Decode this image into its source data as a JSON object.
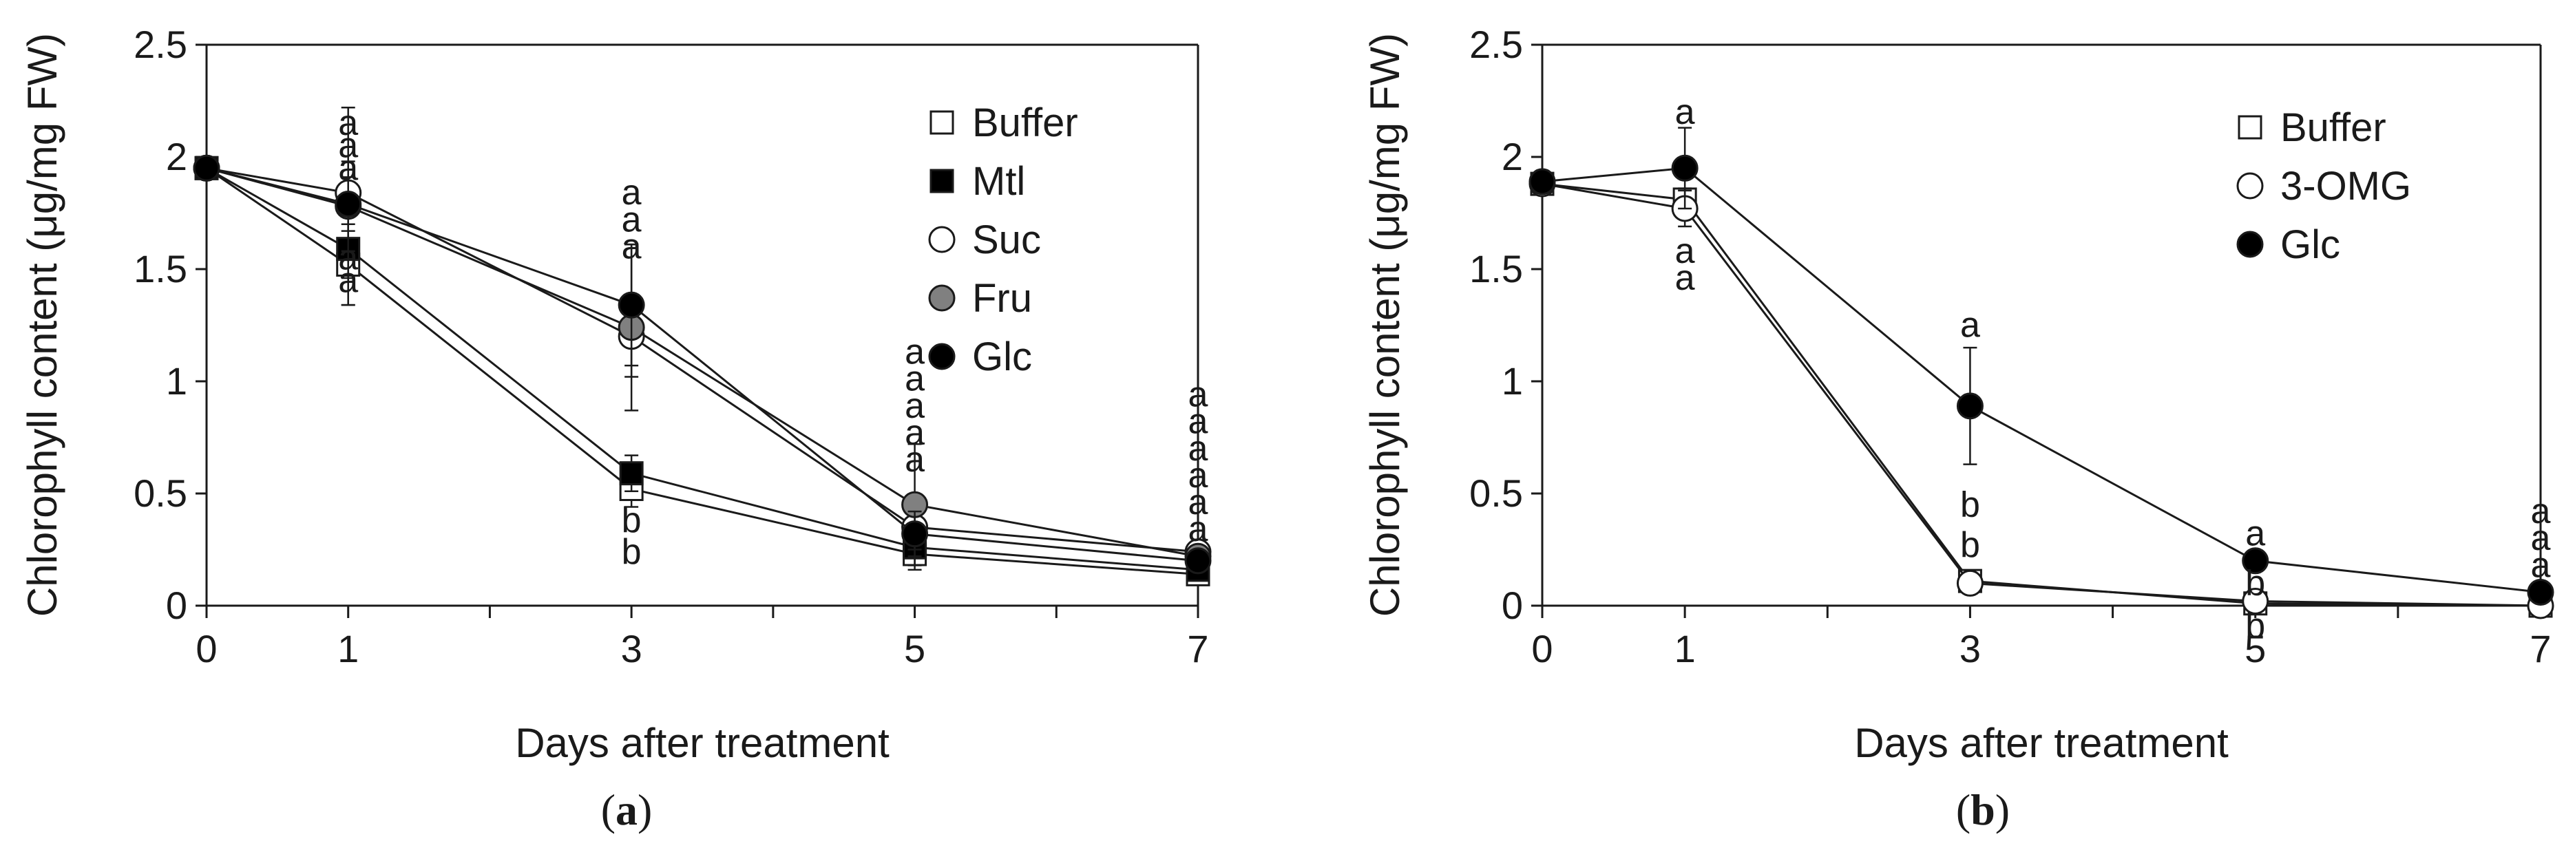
{
  "chart_data": [
    {
      "type": "line",
      "panel_label": "(a)",
      "panel_letter": "a",
      "xlabel": "Days after treatment",
      "ylabel": "Chlorophyll content (μg/mg FW)",
      "x": [
        0,
        1,
        3,
        5,
        7
      ],
      "xticks": [
        "0",
        "1",
        "3",
        "5",
        "7"
      ],
      "yticks": [
        "0",
        "0.5",
        "1",
        "1.5",
        "2",
        "2.5"
      ],
      "xlim": [
        0,
        7
      ],
      "ylim": [
        0,
        2.5
      ],
      "legend_position": "top-right",
      "series": [
        {
          "name": "Buffer",
          "marker": "square",
          "fill": "#ffffff",
          "values": [
            1.95,
            1.52,
            0.52,
            0.23,
            0.14
          ],
          "errors": [
            0,
            0.18,
            0.08,
            0.05,
            0.02
          ]
        },
        {
          "name": "Mtl",
          "marker": "square",
          "fill": "#000000",
          "values": [
            1.95,
            1.59,
            0.59,
            0.26,
            0.16
          ],
          "errors": [
            0,
            0.25,
            0.08,
            0.1,
            0.02
          ]
        },
        {
          "name": "Suc",
          "marker": "circle",
          "fill": "#ffffff",
          "values": [
            1.95,
            1.84,
            1.2,
            0.35,
            0.24
          ],
          "errors": [
            0,
            0.38,
            0.18,
            0.1,
            0.04
          ]
        },
        {
          "name": "Fru",
          "marker": "circle",
          "fill": "#808080",
          "values": [
            1.95,
            1.78,
            1.24,
            0.45,
            0.22
          ],
          "errors": [
            0,
            0.2,
            0.37,
            0.27,
            0.04
          ]
        },
        {
          "name": "Glc",
          "marker": "circle",
          "fill": "#000000",
          "values": [
            1.95,
            1.79,
            1.34,
            0.32,
            0.2
          ],
          "errors": [
            0,
            0.12,
            0.27,
            0.1,
            0.03
          ]
        }
      ],
      "annotations": [
        {
          "x": 1,
          "y": 1.45,
          "text": "a"
        },
        {
          "x": 1,
          "y": 1.55,
          "text": "a"
        },
        {
          "x": 1,
          "y": 1.95,
          "text": "a"
        },
        {
          "x": 1,
          "y": 2.05,
          "text": "a"
        },
        {
          "x": 1,
          "y": 2.15,
          "text": "a"
        },
        {
          "x": 3,
          "y": 0.38,
          "text": "b"
        },
        {
          "x": 3,
          "y": 0.24,
          "text": "b"
        },
        {
          "x": 3,
          "y": 1.6,
          "text": "a"
        },
        {
          "x": 3,
          "y": 1.72,
          "text": "a"
        },
        {
          "x": 3,
          "y": 1.84,
          "text": "a"
        },
        {
          "x": 5,
          "y": 0.65,
          "text": "a"
        },
        {
          "x": 5,
          "y": 0.77,
          "text": "a"
        },
        {
          "x": 5,
          "y": 0.89,
          "text": "a"
        },
        {
          "x": 5,
          "y": 1.01,
          "text": "a"
        },
        {
          "x": 5,
          "y": 1.13,
          "text": "a"
        },
        {
          "x": 7,
          "y": 0.34,
          "text": "a"
        },
        {
          "x": 7,
          "y": 0.46,
          "text": "a"
        },
        {
          "x": 7,
          "y": 0.58,
          "text": "a"
        },
        {
          "x": 7,
          "y": 0.7,
          "text": "a"
        },
        {
          "x": 7,
          "y": 0.82,
          "text": "a"
        },
        {
          "x": 7,
          "y": 0.94,
          "text": "a"
        }
      ]
    },
    {
      "type": "line",
      "panel_label": "(b)",
      "panel_letter": "b",
      "xlabel": "Days after treatment",
      "ylabel": "Chlorophyll content (μg/mg FW)",
      "x": [
        0,
        1,
        3,
        5,
        7
      ],
      "xticks": [
        "0",
        "1",
        "3",
        "5",
        "7"
      ],
      "yticks": [
        "0",
        "0.5",
        "1",
        "1.5",
        "2",
        "2.5"
      ],
      "xlim": [
        0,
        7
      ],
      "ylim": [
        0,
        2.5
      ],
      "legend_position": "top-right",
      "series": [
        {
          "name": "Buffer",
          "marker": "square",
          "fill": "#ffffff",
          "values": [
            1.88,
            1.81,
            0.11,
            0.01,
            0.0
          ],
          "errors": [
            0.03,
            0.05,
            0.02,
            0.01,
            0.01
          ]
        },
        {
          "name": "3-OMG",
          "marker": "circle",
          "fill": "#ffffff",
          "values": [
            1.88,
            1.77,
            0.1,
            0.02,
            0.0
          ],
          "errors": [
            0.03,
            0.08,
            0.02,
            0.01,
            0.01
          ]
        },
        {
          "name": "Glc",
          "marker": "circle",
          "fill": "#000000",
          "values": [
            1.89,
            1.95,
            0.89,
            0.2,
            0.06
          ],
          "errors": [
            0.03,
            0.18,
            0.26,
            0.02,
            0.01
          ]
        }
      ],
      "annotations": [
        {
          "x": 1,
          "y": 2.2,
          "text": "a"
        },
        {
          "x": 1,
          "y": 1.58,
          "text": "a"
        },
        {
          "x": 1,
          "y": 1.46,
          "text": "a"
        },
        {
          "x": 3,
          "y": 1.25,
          "text": "a"
        },
        {
          "x": 3,
          "y": 0.45,
          "text": "b"
        },
        {
          "x": 3,
          "y": 0.27,
          "text": "b"
        },
        {
          "x": 5,
          "y": 0.32,
          "text": "a"
        },
        {
          "x": 5,
          "y": 0.1,
          "text": "b"
        },
        {
          "x": 5,
          "y": -0.09,
          "text": "b"
        },
        {
          "x": 7,
          "y": 0.42,
          "text": "a"
        },
        {
          "x": 7,
          "y": 0.3,
          "text": "a"
        },
        {
          "x": 7,
          "y": 0.18,
          "text": "a"
        }
      ]
    }
  ]
}
